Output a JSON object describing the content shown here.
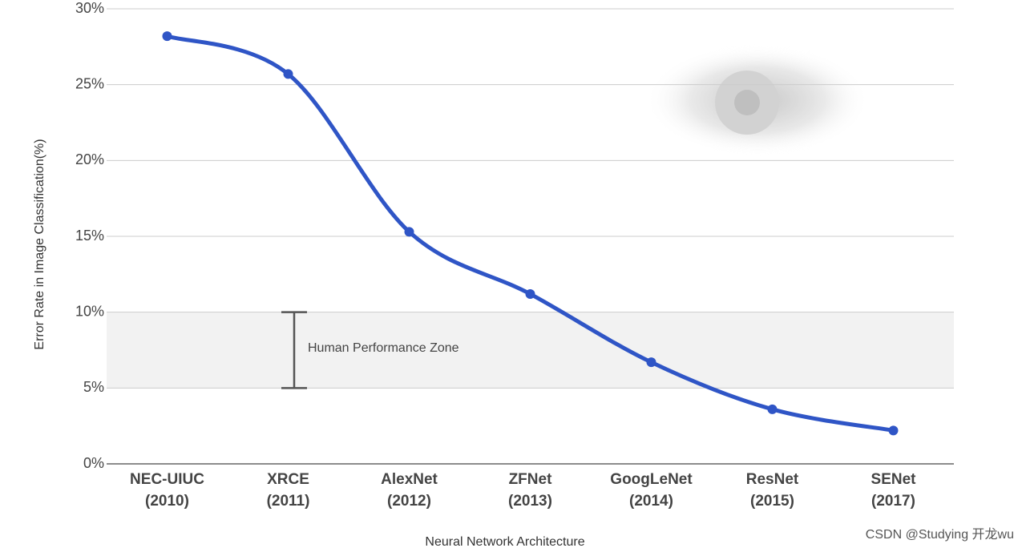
{
  "chart_data": {
    "type": "line",
    "y_label": "Error Rate in Image Classification(%)",
    "x_label": "Neural Network Architecture",
    "categories": [
      [
        "NEC-UIUC",
        "(2010)"
      ],
      [
        "XRCE",
        "(2011)"
      ],
      [
        "AlexNet",
        "(2012)"
      ],
      [
        "ZFNet",
        "(2013)"
      ],
      [
        "GoogLeNet",
        "(2014)"
      ],
      [
        "ResNet",
        "(2015)"
      ],
      [
        "SENet",
        "(2017)"
      ]
    ],
    "values": [
      28.2,
      25.7,
      15.3,
      11.2,
      6.7,
      3.6,
      2.2
    ],
    "color": "#2f55c6",
    "ylim": [
      0,
      30
    ],
    "yticks": [
      {
        "value": 0,
        "label": "0%"
      },
      {
        "value": 5,
        "label": "5%"
      },
      {
        "value": 10,
        "label": "10%"
      },
      {
        "value": 15,
        "label": "15%"
      },
      {
        "value": 20,
        "label": "20%"
      },
      {
        "value": 25,
        "label": "25%"
      },
      {
        "value": 30,
        "label": "30%"
      }
    ],
    "grid": true,
    "zone": {
      "label": "Human Performance Zone",
      "range": [
        5,
        10
      ]
    },
    "watermark": "CSDN @Studying 开龙wu"
  }
}
